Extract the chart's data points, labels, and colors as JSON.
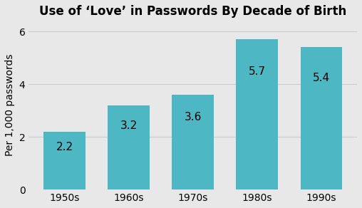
{
  "title": "Use of ‘Love’ in Passwords By Decade of Birth",
  "categories": [
    "1950s",
    "1960s",
    "1970s",
    "1980s",
    "1990s"
  ],
  "values": [
    2.2,
    3.2,
    3.6,
    5.7,
    5.4
  ],
  "bar_color": "#4DB8C4",
  "ylabel": "Per 1,000 passwords",
  "ylim": [
    0,
    6.4
  ],
  "yticks": [
    0,
    2,
    4,
    6
  ],
  "label_fontsize": 10,
  "title_fontsize": 12,
  "tick_fontsize": 10,
  "bar_label_fontsize": 11,
  "background_color": "#E8E8E8",
  "grid_color": "#CCCCCC",
  "label_color": "#000000"
}
